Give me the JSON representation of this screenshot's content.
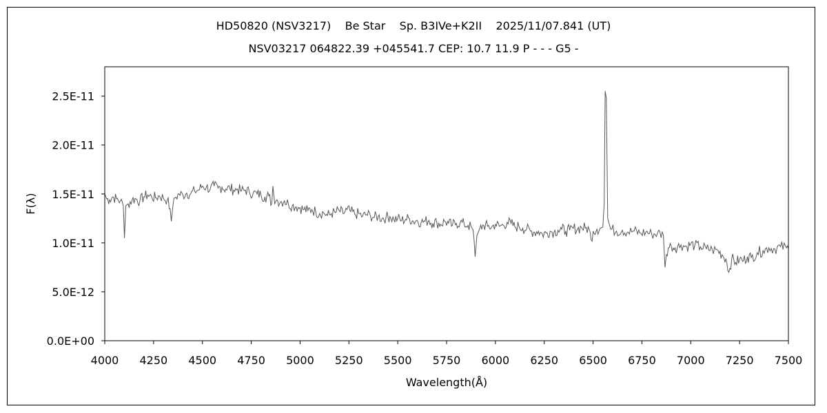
{
  "chart_data": {
    "type": "line",
    "title": "HD50820 (NSV3217)    Be Star    Sp. B3IVe+K2II    2025/11/07.841 (UT)",
    "subtitle": "NSV03217 064822.39 +045541.7 CEP: 10.7 11.9 P - - - G5 -",
    "xlabel": "Wavelength(Å)",
    "ylabel": "F(λ)",
    "xlim": [
      4000,
      7500
    ],
    "ylim": [
      0,
      2.8e-11
    ],
    "x_ticks": [
      4000,
      4250,
      4500,
      4750,
      5000,
      5250,
      5500,
      5750,
      6000,
      6250,
      6500,
      6750,
      7000,
      7250,
      7500
    ],
    "x_tick_labels": [
      "4000",
      "4250",
      "4500",
      "4750",
      "5000",
      "5250",
      "5500",
      "5750",
      "6000",
      "6250",
      "6500",
      "6750",
      "7000",
      "7250",
      "7500"
    ],
    "y_ticks": [
      0,
      5e-12,
      1e-11,
      1.5e-11,
      2e-11,
      2.5e-11
    ],
    "y_tick_labels": [
      "0.0E+00",
      "5.0E-12",
      "1.0E-11",
      "1.5E-11",
      "2.0E-11",
      "2.5E-11"
    ],
    "grid": false,
    "legend": "none",
    "line_color": "#555555",
    "series": [
      {
        "x": [
          4000,
          4010,
          4025,
          4040,
          4060,
          4080,
          4095,
          4101,
          4108,
          4120,
          4140,
          4160,
          4180,
          4200,
          4220,
          4240,
          4260,
          4280,
          4300,
          4320,
          4335,
          4341,
          4348,
          4360,
          4380,
          4400,
          4420,
          4440,
          4460,
          4480,
          4500,
          4520,
          4540,
          4560,
          4580,
          4600,
          4620,
          4640,
          4660,
          4680,
          4700,
          4720,
          4740,
          4760,
          4780,
          4800,
          4820,
          4840,
          4855,
          4861,
          4870,
          4880,
          4900,
          4920,
          4940,
          4960,
          4980,
          5000,
          5020,
          5040,
          5060,
          5080,
          5100,
          5120,
          5140,
          5160,
          5180,
          5200,
          5220,
          5240,
          5260,
          5280,
          5300,
          5320,
          5340,
          5360,
          5380,
          5400,
          5420,
          5440,
          5460,
          5480,
          5500,
          5520,
          5540,
          5560,
          5580,
          5600,
          5620,
          5640,
          5660,
          5680,
          5700,
          5720,
          5740,
          5760,
          5780,
          5800,
          5820,
          5840,
          5860,
          5880,
          5890,
          5896,
          5905,
          5920,
          5940,
          5960,
          5980,
          6000,
          6020,
          6040,
          6060,
          6080,
          6100,
          6120,
          6140,
          6160,
          6180,
          6200,
          6220,
          6240,
          6260,
          6280,
          6300,
          6320,
          6340,
          6360,
          6380,
          6400,
          6420,
          6440,
          6460,
          6480,
          6490,
          6500,
          6520,
          6540,
          6550,
          6557,
          6562,
          6568,
          6575,
          6590,
          6620,
          6650,
          6680,
          6710,
          6740,
          6770,
          6800,
          6830,
          6860,
          6868,
          6875,
          6885,
          6900,
          6920,
          6950,
          6980,
          7000,
          7020,
          7050,
          7080,
          7110,
          7140,
          7160,
          7180,
          7195,
          7200,
          7210,
          7230,
          7250,
          7270,
          7290,
          7310,
          7340,
          7370,
          7400,
          7430,
          7460,
          7490,
          7500
        ],
        "values": [
          1.5e-11,
          1.45e-11,
          1.44e-11,
          1.47e-11,
          1.45e-11,
          1.43e-11,
          1.38e-11,
          1.05e-11,
          1.38e-11,
          1.4e-11,
          1.44e-11,
          1.45e-11,
          1.43e-11,
          1.47e-11,
          1.49e-11,
          1.47e-11,
          1.46e-11,
          1.48e-11,
          1.46e-11,
          1.44e-11,
          1.35e-11,
          1.22e-11,
          1.36e-11,
          1.46e-11,
          1.5e-11,
          1.49e-11,
          1.51e-11,
          1.5e-11,
          1.53e-11,
          1.54e-11,
          1.58e-11,
          1.57e-11,
          1.55e-11,
          1.58e-11,
          1.56e-11,
          1.57e-11,
          1.55e-11,
          1.56e-11,
          1.54e-11,
          1.55e-11,
          1.53e-11,
          1.54e-11,
          1.52e-11,
          1.51e-11,
          1.5e-11,
          1.49e-11,
          1.47e-11,
          1.48e-11,
          1.4e-11,
          1.58e-11,
          1.4e-11,
          1.44e-11,
          1.42e-11,
          1.43e-11,
          1.4e-11,
          1.38e-11,
          1.37e-11,
          1.36e-11,
          1.34e-11,
          1.33e-11,
          1.34e-11,
          1.32e-11,
          1.3e-11,
          1.31e-11,
          1.28e-11,
          1.3e-11,
          1.31e-11,
          1.33e-11,
          1.3e-11,
          1.34e-11,
          1.32e-11,
          1.29e-11,
          1.3e-11,
          1.27e-11,
          1.29e-11,
          1.28e-11,
          1.26e-11,
          1.27e-11,
          1.25e-11,
          1.26e-11,
          1.27e-11,
          1.24e-11,
          1.25e-11,
          1.23e-11,
          1.24e-11,
          1.25e-11,
          1.22e-11,
          1.23e-11,
          1.21e-11,
          1.22e-11,
          1.23e-11,
          1.2e-11,
          1.21e-11,
          1.19e-11,
          1.22e-11,
          1.2e-11,
          1.18e-11,
          1.2e-11,
          1.21e-11,
          1.19e-11,
          1.18e-11,
          1.15e-11,
          1.05e-11,
          8.6e-12,
          1.07e-11,
          1.15e-11,
          1.18e-11,
          1.17e-11,
          1.16e-11,
          1.19e-11,
          1.17e-11,
          1.18e-11,
          1.21e-11,
          1.2e-11,
          1.16e-11,
          1.17e-11,
          1.15e-11,
          1.14e-11,
          1.12e-11,
          1.11e-11,
          1.12e-11,
          1.09e-11,
          1.1e-11,
          1.12e-11,
          1.11e-11,
          1.13e-11,
          1.14e-11,
          1.12e-11,
          1.13e-11,
          1.15e-11,
          1.14e-11,
          1.16e-11,
          1.15e-11,
          1.14e-11,
          1.03e-11,
          1.12e-11,
          1.14e-11,
          1.15e-11,
          1.16e-11,
          1.4e-11,
          2.55e-11,
          2.48e-11,
          1.25e-11,
          1.14e-11,
          1.12e-11,
          1.13e-11,
          1.11e-11,
          1.12e-11,
          1.1e-11,
          1.11e-11,
          1.09e-11,
          1.1e-11,
          1.08e-11,
          7.5e-12,
          8.8e-12,
          9.5e-12,
          9.7e-12,
          9.5e-12,
          9.8e-12,
          9.6e-12,
          9.9e-12,
          9.7e-12,
          9.6e-12,
          9.4e-12,
          9.3e-12,
          9.2e-12,
          8.8e-12,
          8.4e-12,
          7e-12,
          7.4e-12,
          8.4e-12,
          8e-12,
          8.3e-12,
          8.2e-12,
          8.6e-12,
          8.5e-12,
          9e-12,
          9.2e-12,
          9.5e-12,
          9.4e-12,
          9.6e-12,
          9.5e-12,
          9.4e-12
        ]
      }
    ]
  }
}
